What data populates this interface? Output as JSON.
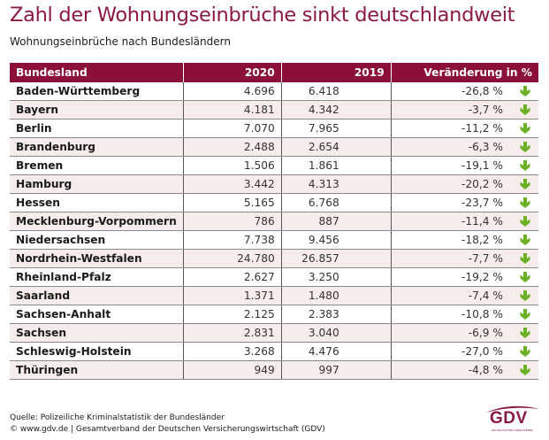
{
  "chart_data": {
    "type": "table",
    "title": "Zahl der Wohnungseinbrüche sinkt deutschlandweit",
    "subtitle": "Wohnungseinbrüche nach Bundesländern",
    "columns": [
      "Bundesland",
      "2020",
      "2019",
      "Veränderung in %"
    ],
    "rows": [
      {
        "bundesland": "Baden-Württemberg",
        "y2020": "4.696",
        "y2019": "6.418",
        "change": "-26,8 %",
        "trend": "down"
      },
      {
        "bundesland": "Bayern",
        "y2020": "4.181",
        "y2019": "4.342",
        "change": "-3,7 %",
        "trend": "down"
      },
      {
        "bundesland": "Berlin",
        "y2020": "7.070",
        "y2019": "7.965",
        "change": "-11,2 %",
        "trend": "down"
      },
      {
        "bundesland": "Brandenburg",
        "y2020": "2.488",
        "y2019": "2.654",
        "change": "-6,3 %",
        "trend": "down"
      },
      {
        "bundesland": "Bremen",
        "y2020": "1.506",
        "y2019": "1.861",
        "change": "-19,1 %",
        "trend": "down"
      },
      {
        "bundesland": "Hamburg",
        "y2020": "3.442",
        "y2019": "4.313",
        "change": "-20,2 %",
        "trend": "down"
      },
      {
        "bundesland": "Hessen",
        "y2020": "5.165",
        "y2019": "6.768",
        "change": "-23,7 %",
        "trend": "down"
      },
      {
        "bundesland": "Mecklenburg-Vorpommern",
        "y2020": "786",
        "y2019": "887",
        "change": "-11,4 %",
        "trend": "down"
      },
      {
        "bundesland": "Niedersachsen",
        "y2020": "7.738",
        "y2019": "9.456",
        "change": "-18,2 %",
        "trend": "down"
      },
      {
        "bundesland": "Nordrhein-Westfalen",
        "y2020": "24.780",
        "y2019": "26.857",
        "change": "-7,7 %",
        "trend": "down"
      },
      {
        "bundesland": "Rheinland-Pfalz",
        "y2020": "2.627",
        "y2019": "3.250",
        "change": "-19,2 %",
        "trend": "down"
      },
      {
        "bundesland": "Saarland",
        "y2020": "1.371",
        "y2019": "1.480",
        "change": "-7,4 %",
        "trend": "down"
      },
      {
        "bundesland": "Sachsen-Anhalt",
        "y2020": "2.125",
        "y2019": "2.383",
        "change": "-10,8 %",
        "trend": "down"
      },
      {
        "bundesland": "Sachsen",
        "y2020": "2.831",
        "y2019": "3.040",
        "change": "-6,9 %",
        "trend": "down"
      },
      {
        "bundesland": "Schleswig-Holstein",
        "y2020": "3.268",
        "y2019": "4.476",
        "change": "-27,0 %",
        "trend": "down"
      },
      {
        "bundesland": "Thüringen",
        "y2020": "949",
        "y2019": "997",
        "change": "-4,8 %",
        "trend": "down"
      }
    ]
  },
  "footer": {
    "source": "Quelle: Polizeiliche Kriminalstatistik der Bundesländer",
    "copyright": "© www.gdv.de | Gesamtverband der Deutschen Versicherungswirtschaft (GDV)"
  },
  "logo": {
    "text": "GDV",
    "tagline": "DIE DEUTSCHEN VERSICHERER"
  },
  "colors": {
    "brand": "#8b1a3c",
    "header_bg": "#8b0f36",
    "row_alt": "#f6ecec",
    "arrow_down": "#6ab023"
  }
}
